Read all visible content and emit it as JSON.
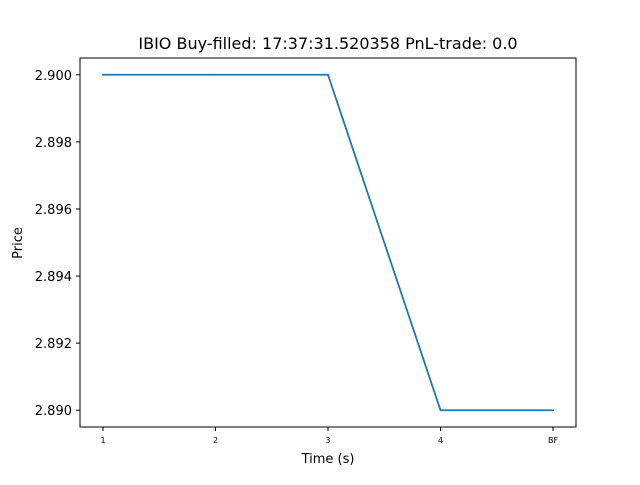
{
  "chart_data": {
    "type": "line",
    "title": "IBIO  Buy-filled:  17:37:31.520358  PnL-trade:  0.0",
    "xlabel": "Time (s)",
    "ylabel": "Price",
    "categories": [
      "1",
      "2",
      "3",
      "4",
      "BF"
    ],
    "series": [
      {
        "values": [
          2.9,
          2.9,
          2.9,
          2.89,
          2.89
        ]
      }
    ],
    "ylim": [
      2.8895,
      2.9005
    ],
    "yticks": [
      2.89,
      2.892,
      2.894,
      2.896,
      2.898,
      2.9
    ],
    "ytick_labels": [
      "2.890",
      "2.892",
      "2.894",
      "2.896",
      "2.898",
      "2.900"
    ],
    "grid": false,
    "line_color": "#1f77b4"
  }
}
